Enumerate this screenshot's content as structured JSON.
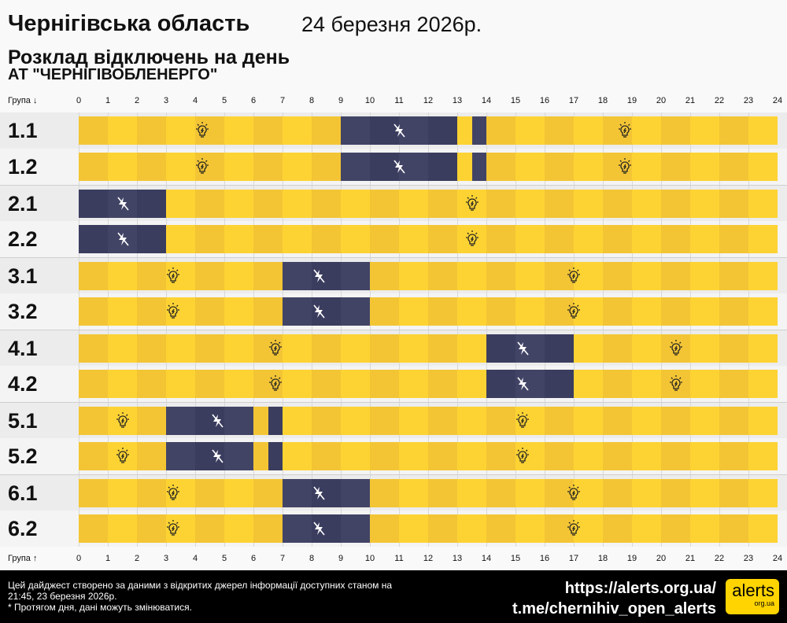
{
  "header": {
    "region": "Чернігівська область",
    "date": "24 березня 2026р.",
    "title": "Розклад відключень на день",
    "company": "АТ \"ЧЕРНІГІВОБЛЕНЕРГО\""
  },
  "axis": {
    "top_label": "Група ↓",
    "bottom_label": "Група ↑",
    "hours": [
      "0",
      "1",
      "2",
      "3",
      "4",
      "5",
      "6",
      "7",
      "8",
      "9",
      "10",
      "11",
      "12",
      "13",
      "14",
      "15",
      "16",
      "17",
      "18",
      "19",
      "20",
      "21",
      "22",
      "23",
      "24"
    ]
  },
  "colors": {
    "on": "#fdd333",
    "on_alt": "#f3c535",
    "off": "#3b3d5f",
    "off_alt": "#424466"
  },
  "groups": [
    {
      "name": "1.1",
      "off": [
        [
          8.5,
          13.5
        ]
      ]
    },
    {
      "name": "1.2",
      "off": [
        [
          8.5,
          13.5
        ]
      ]
    },
    {
      "name": "2.1",
      "off": [
        [
          0,
          3
        ]
      ]
    },
    {
      "name": "2.2",
      "off": [
        [
          0,
          3
        ]
      ]
    },
    {
      "name": "3.1",
      "off": [
        [
          6.5,
          10
        ]
      ]
    },
    {
      "name": "3.2",
      "off": [
        [
          6.5,
          10
        ]
      ]
    },
    {
      "name": "4.1",
      "off": [
        [
          13.5,
          17
        ]
      ]
    },
    {
      "name": "4.2",
      "off": [
        [
          13.5,
          17
        ]
      ]
    },
    {
      "name": "5.1",
      "off": [
        [
          3,
          6.5
        ]
      ]
    },
    {
      "name": "5.2",
      "off": [
        [
          3,
          6.5
        ]
      ]
    },
    {
      "name": "6.1",
      "off": [
        [
          6.5,
          10
        ]
      ]
    },
    {
      "name": "6.2",
      "off": [
        [
          6.5,
          10
        ]
      ]
    }
  ],
  "icons": {
    "on": "lightbulb-icon",
    "off": "no-power-lightning-icon"
  },
  "footer": {
    "note1": "Цей дайджест створено за даними з відкритих джерел інформації доступних станом на 21:45, 23 березня 2026р.",
    "note2": "* Протягом дня, дані можуть змінюватися.",
    "link1": "https://alerts.org.ua/",
    "link2": "t.me/chernihiv_open_alerts",
    "logo_main": "alerts",
    "logo_sub": "org.ua"
  }
}
